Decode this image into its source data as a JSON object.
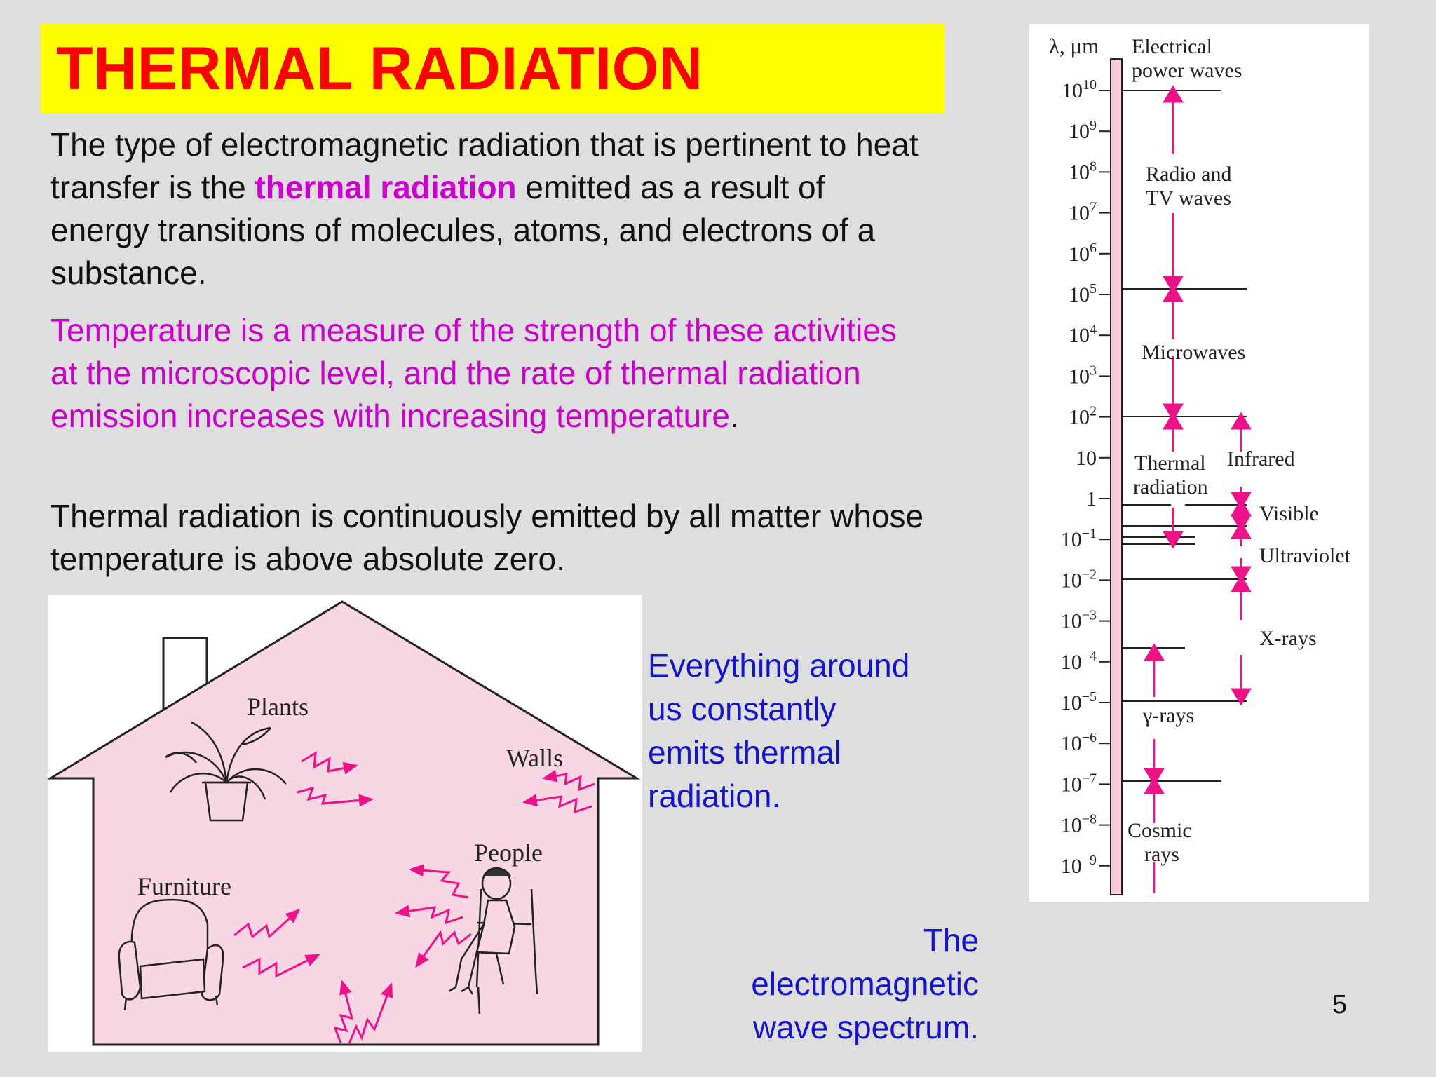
{
  "title": "THERMAL RADIATION",
  "paragraphs": {
    "p1_part1": "The type of electromagnetic radiation that is pertinent to heat transfer is the ",
    "p1_highlight": "thermal radiation",
    "p1_part2": " emitted as a result of energy transitions of molecules, atoms, and electrons of a substance.",
    "p2_text": "Temperature is a measure of the strength of these activities at the microscopic level, and the rate of thermal radiation emission increases with increasing temperature",
    "p2_end": ".",
    "p3_text": "Thermal radiation is continuously emitted by all matter whose temperature is above absolute zero."
  },
  "house_figure": {
    "labels": {
      "plants": "Plants",
      "walls": "Walls",
      "people": "People",
      "furniture": "Furniture"
    }
  },
  "captions": {
    "everything": "Everything around us constantly emits thermal radiation.",
    "spectrum": "The electromagnetic wave spectrum."
  },
  "spectrum": {
    "axis_unit": "λ, μm",
    "ticks": [
      {
        "base": "10",
        "exp": "10"
      },
      {
        "base": "10",
        "exp": "9"
      },
      {
        "base": "10",
        "exp": "8"
      },
      {
        "base": "10",
        "exp": "7"
      },
      {
        "base": "10",
        "exp": "6"
      },
      {
        "base": "10",
        "exp": "5"
      },
      {
        "base": "10",
        "exp": "4"
      },
      {
        "base": "10",
        "exp": "3"
      },
      {
        "base": "10",
        "exp": "2"
      },
      {
        "base": "10",
        "exp": ""
      },
      {
        "base": "1",
        "exp": ""
      },
      {
        "base": "10",
        "exp": "−1"
      },
      {
        "base": "10",
        "exp": "−2"
      },
      {
        "base": "10",
        "exp": "−3"
      },
      {
        "base": "10",
        "exp": "−4"
      },
      {
        "base": "10",
        "exp": "−5"
      },
      {
        "base": "10",
        "exp": "−6"
      },
      {
        "base": "10",
        "exp": "−7"
      },
      {
        "base": "10",
        "exp": "−8"
      },
      {
        "base": "10",
        "exp": "−9"
      }
    ],
    "bands": {
      "electrical_l1": "Electrical",
      "electrical_l2": "power waves",
      "radio_l1": "Radio and",
      "radio_l2": "TV waves",
      "microwaves": "Microwaves",
      "thermal_l1": "Thermal",
      "thermal_l2": "radiation",
      "infrared": "Infrared",
      "visible": "Visible",
      "ultraviolet": "Ultraviolet",
      "xrays": "X-rays",
      "gamma": "γ-rays",
      "cosmic_l1": "Cosmic",
      "cosmic_l2": "rays"
    },
    "bar_color": "#f6c8d8",
    "arrow_color": "#ee1188"
  },
  "colors": {
    "title_bg": "#ffff00",
    "title_text": "#ff0000",
    "highlight": "#cc00cc",
    "caption": "#1414c8",
    "house_fill": "#f8d6e4",
    "zigzag": "#ee1188"
  },
  "page_number": "5"
}
